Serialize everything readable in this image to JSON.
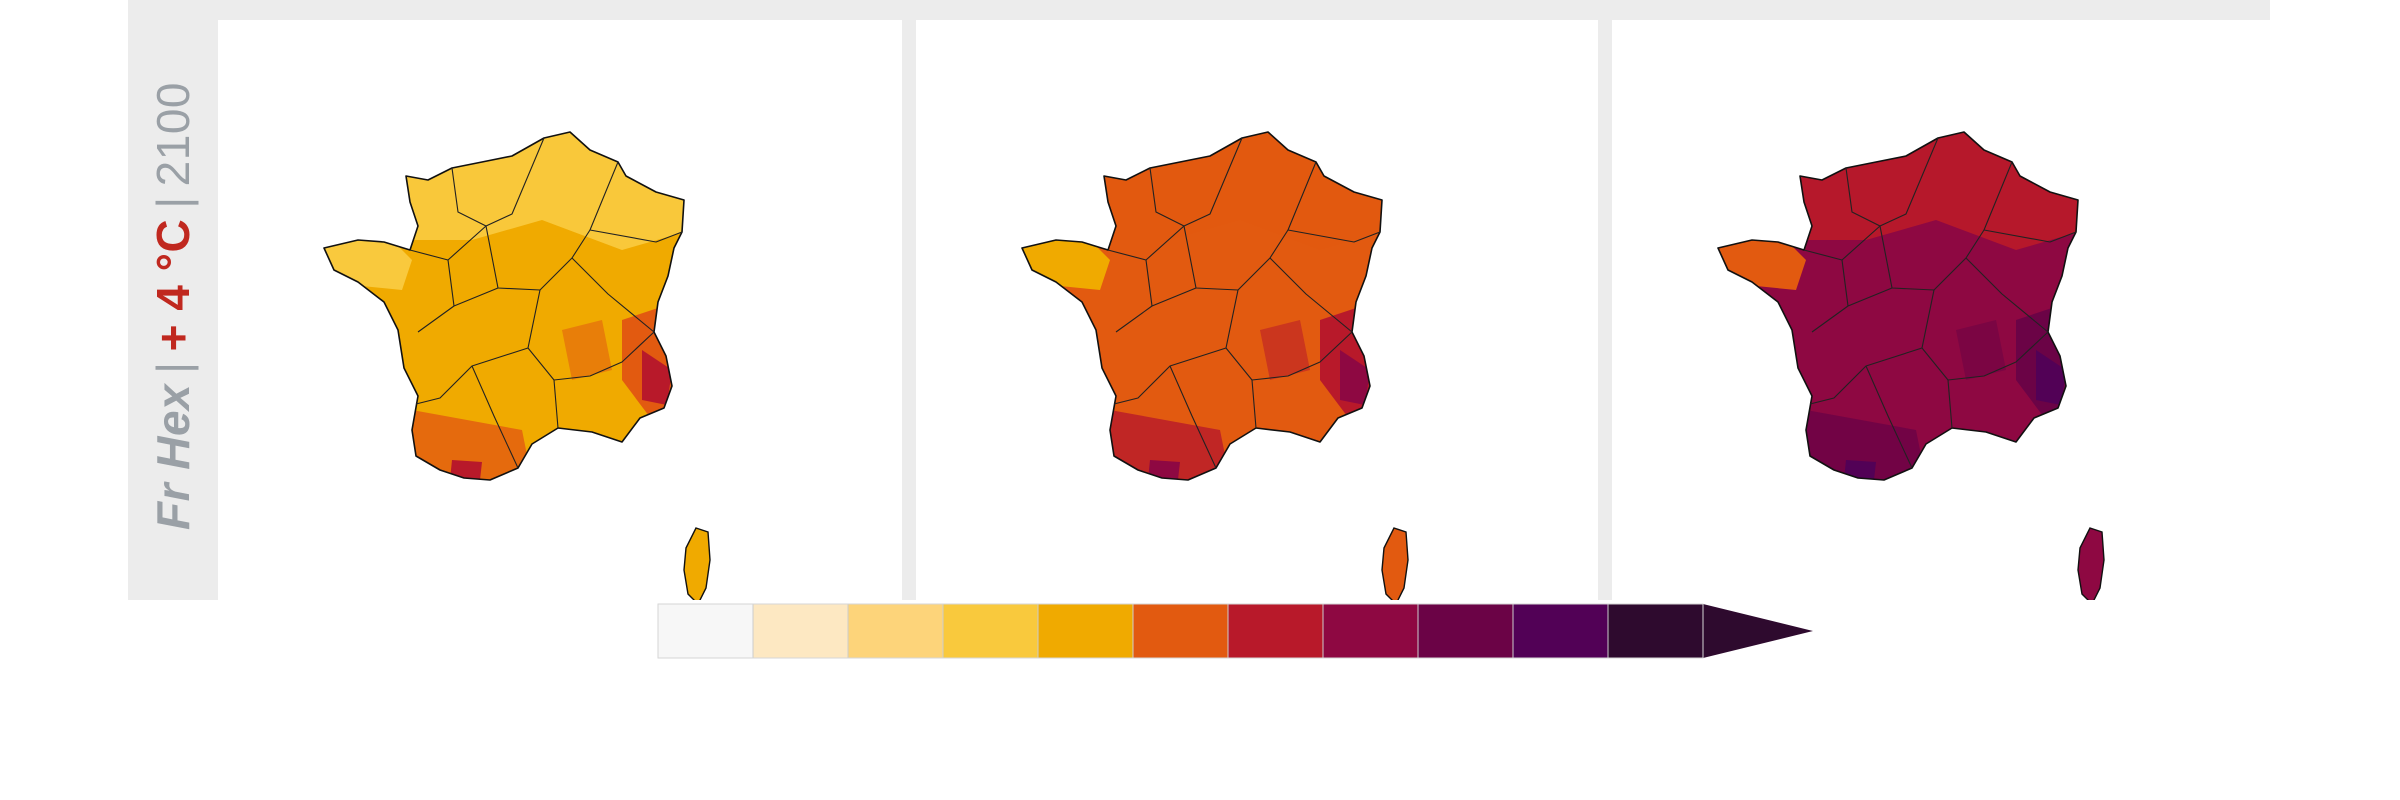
{
  "label": {
    "region": "Fr Hex",
    "warming": "+ 4 °C",
    "year": "2100",
    "separator": "|"
  },
  "palette": {
    "c0": "#f7f7f7",
    "c1": "#fde8c2",
    "c2": "#fdd47a",
    "c3": "#f9c93d",
    "c4": "#f0aa00",
    "c5": "#e25a10",
    "c6": "#b8192a",
    "c7": "#8e0842",
    "c8": "#6b0346",
    "c9": "#520156",
    "c10": "#2e0a2e"
  },
  "panels": [
    {
      "base": "#f0aa00",
      "north": "#f9c93d",
      "west": "#f9c93d",
      "hot": "#e25a10",
      "hotter": "#b8192a",
      "corsica": "#f0aa00"
    },
    {
      "base": "#e25a10",
      "north": "#e25a10",
      "west": "#f0aa00",
      "hot": "#b8192a",
      "hotter": "#8e0842",
      "corsica": "#e25a10"
    },
    {
      "base": "#8e0842",
      "north": "#b8192a",
      "west": "#e25a10",
      "hot": "#6b0346",
      "hotter": "#520156",
      "corsica": "#8e0842"
    }
  ],
  "colorbar": {
    "colors": [
      "#f7f7f7",
      "#fde8c2",
      "#fdd47a",
      "#f9c93d",
      "#f0aa00",
      "#e25a10",
      "#b8192a",
      "#8e0842",
      "#6b0346",
      "#520156",
      "#2e0a2e"
    ],
    "extend": "max"
  }
}
